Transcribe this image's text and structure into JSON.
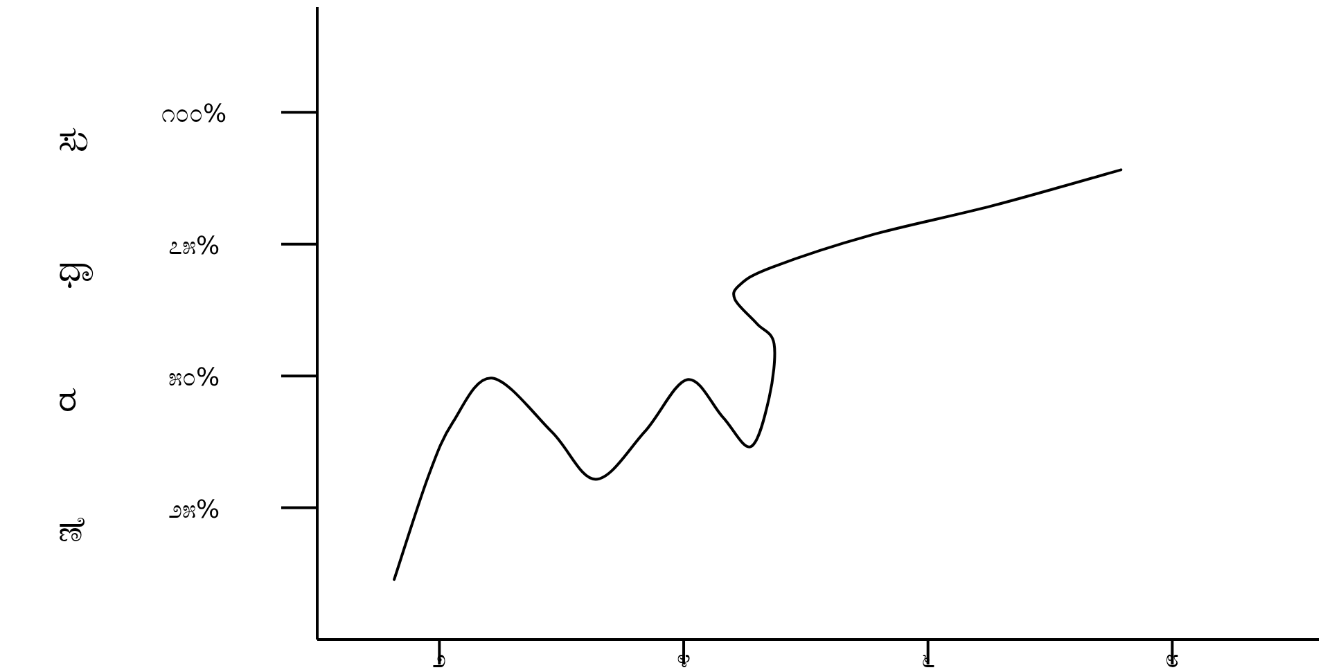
{
  "chart_data": {
    "type": "line",
    "ylabel": "ಸುಧಾರಣೆ",
    "color": "#000000",
    "line_style": "solid",
    "x": [
      1.63,
      1.91,
      2.11,
      2.43,
      2.92,
      3.28,
      3.68,
      4.03,
      4.32,
      4.55,
      4.7,
      4.74,
      4.6,
      4.42,
      4.46,
      4.72,
      5.53,
      6.53,
      7.58
    ],
    "values": [
      11.4,
      31.0,
      41.2,
      49.6,
      39.4,
      30.4,
      39.4,
      49.3,
      42.2,
      36.6,
      45.9,
      56.1,
      59.9,
      64.5,
      67.3,
      70.6,
      76.7,
      82.3,
      89.1
    ],
    "xlim": [
      1,
      9.2
    ],
    "ylim": [
      0,
      120
    ],
    "xticks": [
      {
        "value": 2,
        "label": "೨"
      },
      {
        "value": 4,
        "label": "೪"
      },
      {
        "value": 6,
        "label": "೬"
      },
      {
        "value": 8,
        "label": "೮"
      }
    ],
    "yticks": [
      {
        "value": 25,
        "label": "೨೫%"
      },
      {
        "value": 50,
        "label": "೫೦%"
      },
      {
        "value": 75,
        "label": "೭೫%"
      },
      {
        "value": 100,
        "label": "೧೦೦%"
      }
    ]
  }
}
